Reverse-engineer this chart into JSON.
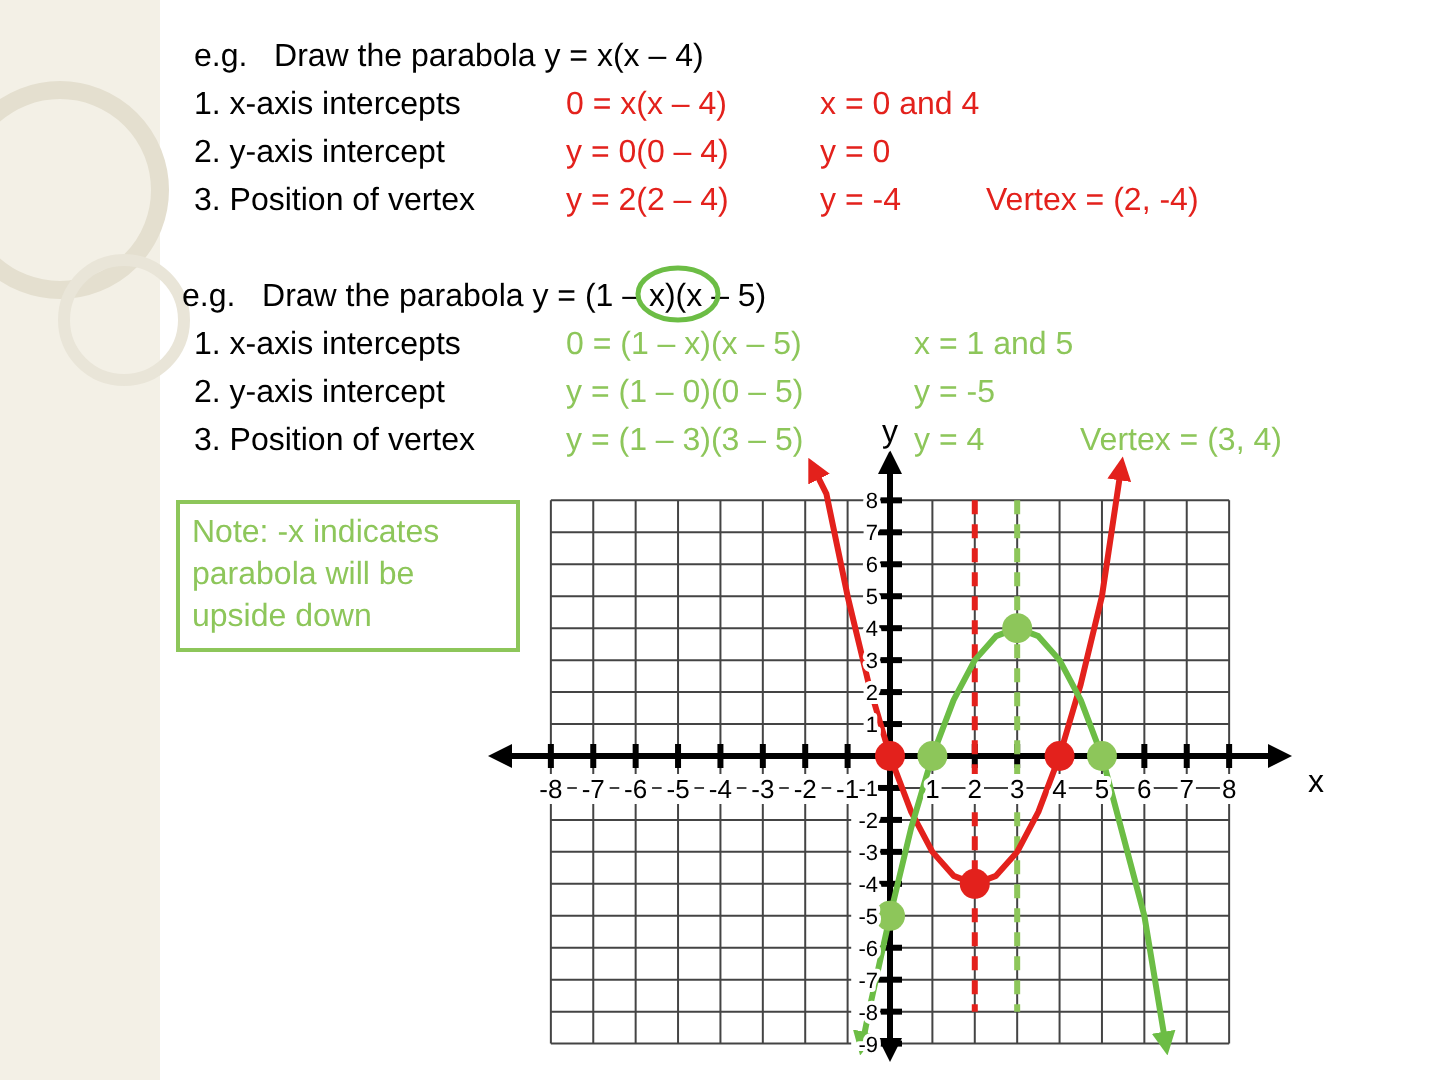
{
  "chart_data": {
    "type": "line",
    "xlabel": "x",
    "ylabel": "y",
    "xlim": [
      -9.2,
      9.2
    ],
    "ylim": [
      -9.2,
      9.2
    ],
    "xticks": [
      -8,
      -7,
      -6,
      -5,
      -4,
      -3,
      -2,
      -1,
      1,
      2,
      3,
      4,
      5,
      6,
      7,
      8
    ],
    "yticks": [
      -9,
      -8,
      -7,
      -6,
      -5,
      -4,
      -3,
      -2,
      -1,
      1,
      2,
      3,
      4,
      5,
      6,
      7,
      8
    ],
    "grid": true,
    "series": [
      {
        "type": "line",
        "color": "#e3211c",
        "marker": "none",
        "x": [
          -1.8,
          -1.5,
          -1,
          -0.5,
          0,
          0.5,
          1,
          1.5,
          2,
          2.5,
          3,
          3.5,
          4,
          4.5,
          5,
          5.45
        ],
        "values": [
          9,
          8.2,
          5,
          2.25,
          0,
          -1.75,
          -3,
          -3.75,
          -4,
          -3.75,
          -3,
          -1.75,
          0,
          2.25,
          5,
          9
        ]
      },
      {
        "type": "line",
        "color": "#6cbd45",
        "marker": "none",
        "x": [
          -0.65,
          -0.5,
          0,
          0.5,
          1,
          1.5,
          2,
          2.5,
          3,
          3.5,
          4,
          4.5,
          5,
          5.5,
          6,
          6.5
        ],
        "values": [
          -9,
          -8,
          -5,
          -2.25,
          0,
          1.75,
          3,
          3.75,
          4,
          3.75,
          3,
          1.75,
          0,
          -2.5,
          -5,
          -9
        ]
      },
      {
        "type": "scatter",
        "color": "#e3211c",
        "marker": "circle",
        "x": [
          0,
          2,
          4
        ],
        "values": [
          0,
          -4,
          0
        ]
      },
      {
        "type": "scatter",
        "color": "#8dc65a",
        "marker": "circle",
        "x": [
          1,
          0,
          3,
          5
        ],
        "values": [
          0,
          -5,
          4,
          0
        ]
      }
    ],
    "ref_lines": [
      {
        "axis": "x",
        "value": 2,
        "color": "#e3211c",
        "line_style": "dashed"
      },
      {
        "axis": "x",
        "value": 3,
        "color": "#8dc65a",
        "line_style": "dashed"
      }
    ],
    "annotations": [
      "e.g.   Draw the parabola y = x(x – 4)",
      "1. x-axis intercepts",
      "0 = x(x – 4)",
      "x = 0 and 4",
      "2. y-axis intercept",
      "y = 0(0 – 4)",
      "y = 0",
      "3. Position of vertex",
      "y = 2(2 – 4)",
      "y = -4",
      "Vertex = (2, -4)",
      "e.g.   Draw the parabola y = (1 – x)(x – 5)",
      "1. x-axis intercepts",
      "0 = (1 – x)(x – 5)",
      "x = 1 and 5",
      "2. y-axis intercept",
      "y = (1 – 0)(0 – 5)",
      "y = -5",
      "3. Position of vertex",
      "y = (1 – 3)(3 – 5)",
      "y = 4",
      "Vertex = (3, 4)",
      "Note: -x indicates parabola will be upside down"
    ]
  }
}
